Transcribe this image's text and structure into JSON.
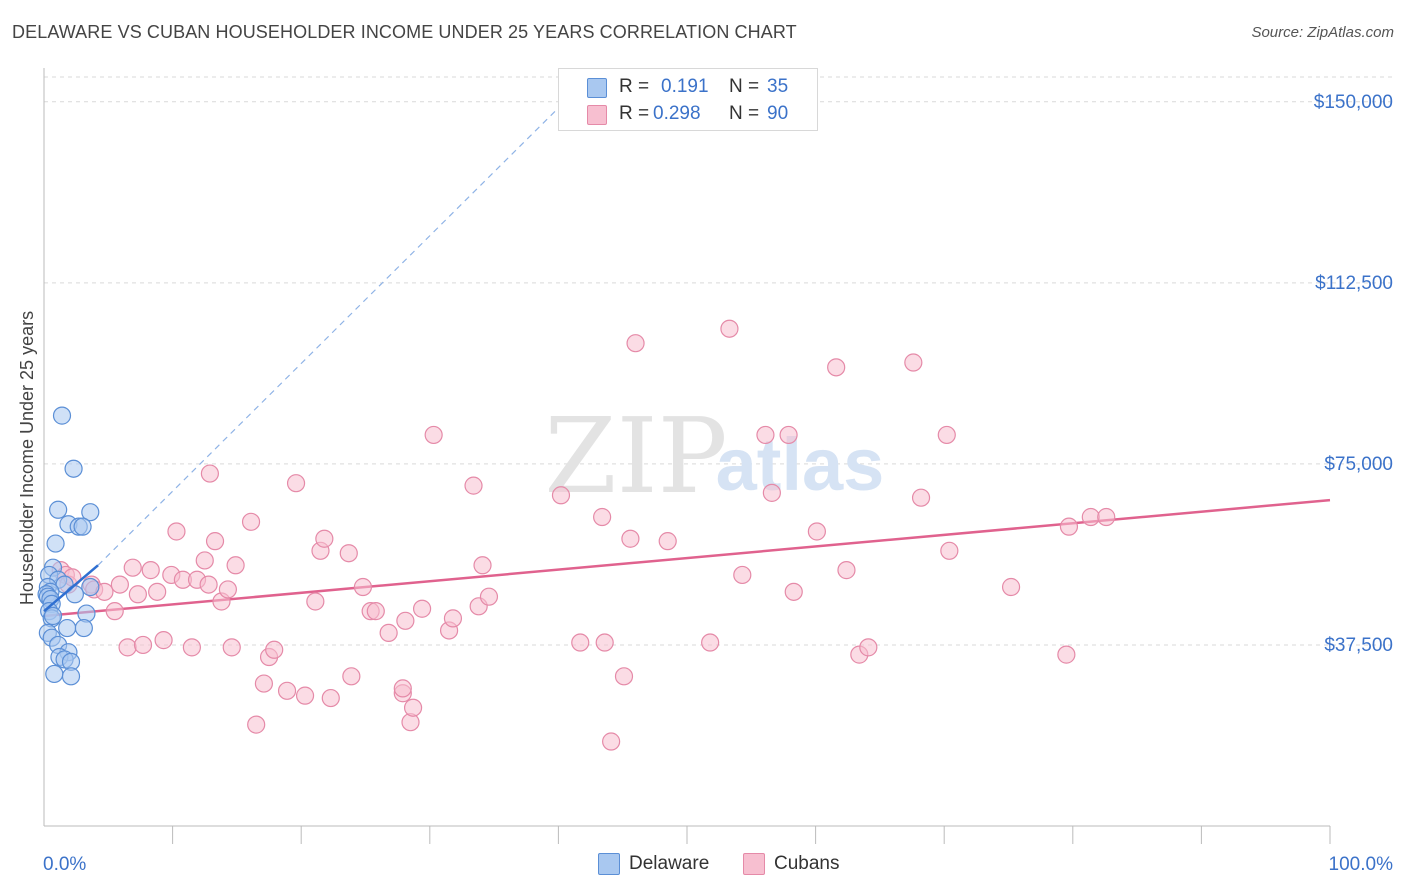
{
  "title": "DELAWARE VS CUBAN HOUSEHOLDER INCOME UNDER 25 YEARS CORRELATION CHART",
  "source": "Source: ZipAtlas.com",
  "watermark": {
    "zip": "ZIP",
    "atlas": "atlas"
  },
  "legend_top": {
    "r_label": "R =",
    "n_label": "N =",
    "rows": [
      {
        "name": "Delaware",
        "r": "0.191",
        "n": "35"
      },
      {
        "name": "Cubans",
        "r": "0.298",
        "n": "90"
      }
    ]
  },
  "bottom_legend": [
    "Delaware",
    "Cubans"
  ],
  "colors": {
    "delaware_fill": "#a9c8f0",
    "delaware_stroke": "#5b8fd6",
    "delaware_line": "#2f6fd1",
    "cubans_fill": "#f7bfd0",
    "cubans_stroke": "#e58aa8",
    "cubans_line": "#e0628e",
    "axis_text": "#3b72c9",
    "grid": "#d9d9d9"
  },
  "chart_data": {
    "type": "scatter",
    "title": "DELAWARE VS CUBAN HOUSEHOLDER INCOME UNDER 25 YEARS CORRELATION CHART",
    "xlabel": "",
    "ylabel": "Householder Income Under 25 years",
    "xlim": [
      0,
      100
    ],
    "ylim": [
      0,
      157000
    ],
    "x_tick_labels": [
      {
        "value": 0,
        "label": "0.0%"
      },
      {
        "value": 100,
        "label": "100.0%"
      }
    ],
    "y_ticks": [
      {
        "value": 37500,
        "label": "$37,500"
      },
      {
        "value": 75000,
        "label": "$75,000"
      },
      {
        "value": 112500,
        "label": "$112,500"
      },
      {
        "value": 150000,
        "label": "$150,000"
      }
    ],
    "series": [
      {
        "name": "Delaware",
        "points": [
          [
            1.4,
            85000
          ],
          [
            2.3,
            74000
          ],
          [
            1.1,
            65500
          ],
          [
            3.6,
            65000
          ],
          [
            1.9,
            62500
          ],
          [
            2.7,
            62000
          ],
          [
            3.0,
            62000
          ],
          [
            0.9,
            58500
          ],
          [
            0.7,
            53500
          ],
          [
            0.4,
            52000
          ],
          [
            1.1,
            51000
          ],
          [
            0.3,
            49500
          ],
          [
            1.6,
            50000
          ],
          [
            3.6,
            49500
          ],
          [
            0.5,
            48500
          ],
          [
            0.2,
            48000
          ],
          [
            0.3,
            47500
          ],
          [
            0.5,
            47000
          ],
          [
            2.4,
            48000
          ],
          [
            0.6,
            46000
          ],
          [
            0.4,
            44500
          ],
          [
            3.3,
            44000
          ],
          [
            0.6,
            43000
          ],
          [
            0.7,
            43500
          ],
          [
            1.8,
            41000
          ],
          [
            3.1,
            41000
          ],
          [
            0.3,
            40000
          ],
          [
            0.6,
            39000
          ],
          [
            1.1,
            37500
          ],
          [
            1.9,
            36000
          ],
          [
            1.2,
            35000
          ],
          [
            1.6,
            34500
          ],
          [
            2.1,
            34000
          ],
          [
            0.8,
            31500
          ],
          [
            2.1,
            31000
          ]
        ],
        "trend": {
          "x0": 0,
          "y0": 44500,
          "x1": 4.2,
          "y1": 54000
        },
        "trend_extension": {
          "x0": 4.2,
          "y0": 54000,
          "x1": 42,
          "y1": 154000
        }
      },
      {
        "name": "Cubans",
        "points": [
          [
            1.3,
            53000
          ],
          [
            1.7,
            52000
          ],
          [
            1.9,
            50000
          ],
          [
            2.2,
            51500
          ],
          [
            3.7,
            50000
          ],
          [
            3.9,
            49000
          ],
          [
            4.7,
            48500
          ],
          [
            5.5,
            44500
          ],
          [
            5.9,
            50000
          ],
          [
            6.5,
            37000
          ],
          [
            6.9,
            53500
          ],
          [
            7.3,
            48000
          ],
          [
            7.7,
            37500
          ],
          [
            8.3,
            53000
          ],
          [
            8.8,
            48500
          ],
          [
            9.3,
            38500
          ],
          [
            9.9,
            52000
          ],
          [
            10.3,
            61000
          ],
          [
            10.8,
            51000
          ],
          [
            11.5,
            37000
          ],
          [
            11.9,
            51000
          ],
          [
            12.5,
            55000
          ],
          [
            12.8,
            50000
          ],
          [
            12.9,
            73000
          ],
          [
            13.3,
            59000
          ],
          [
            13.8,
            46500
          ],
          [
            14.3,
            49000
          ],
          [
            14.6,
            37000
          ],
          [
            14.9,
            54000
          ],
          [
            16.1,
            63000
          ],
          [
            16.5,
            21000
          ],
          [
            17.1,
            29500
          ],
          [
            17.5,
            35000
          ],
          [
            17.9,
            36500
          ],
          [
            18.9,
            28000
          ],
          [
            19.6,
            71000
          ],
          [
            20.3,
            27000
          ],
          [
            21.1,
            46500
          ],
          [
            21.5,
            57000
          ],
          [
            21.8,
            59500
          ],
          [
            22.3,
            26500
          ],
          [
            23.7,
            56500
          ],
          [
            23.9,
            31000
          ],
          [
            24.8,
            49500
          ],
          [
            25.4,
            44500
          ],
          [
            25.8,
            44500
          ],
          [
            26.8,
            40000
          ],
          [
            27.9,
            27500
          ],
          [
            27.9,
            28500
          ],
          [
            28.1,
            42500
          ],
          [
            28.5,
            21500
          ],
          [
            28.7,
            24500
          ],
          [
            29.4,
            45000
          ],
          [
            30.3,
            81000
          ],
          [
            31.5,
            40500
          ],
          [
            31.8,
            43000
          ],
          [
            33.4,
            70500
          ],
          [
            33.8,
            45500
          ],
          [
            34.1,
            54000
          ],
          [
            34.6,
            47500
          ],
          [
            40.2,
            68500
          ],
          [
            41.7,
            38000
          ],
          [
            43.4,
            64000
          ],
          [
            43.6,
            38000
          ],
          [
            44.1,
            17500
          ],
          [
            45.1,
            31000
          ],
          [
            45.6,
            59500
          ],
          [
            46.0,
            100000
          ],
          [
            48.5,
            59000
          ],
          [
            51.8,
            38000
          ],
          [
            53.3,
            103000
          ],
          [
            54.3,
            52000
          ],
          [
            56.1,
            81000
          ],
          [
            56.6,
            69000
          ],
          [
            57.9,
            81000
          ],
          [
            58.3,
            48500
          ],
          [
            60.1,
            61000
          ],
          [
            61.6,
            95000
          ],
          [
            62.4,
            53000
          ],
          [
            63.4,
            35500
          ],
          [
            64.1,
            37000
          ],
          [
            67.6,
            96000
          ],
          [
            68.2,
            68000
          ],
          [
            70.2,
            81000
          ],
          [
            70.4,
            57000
          ],
          [
            75.2,
            49500
          ],
          [
            79.5,
            35500
          ],
          [
            79.7,
            62000
          ],
          [
            81.4,
            64000
          ],
          [
            82.6,
            64000
          ]
        ],
        "trend": {
          "x0": 0,
          "y0": 43500,
          "x1": 100,
          "y1": 67500
        }
      }
    ]
  }
}
